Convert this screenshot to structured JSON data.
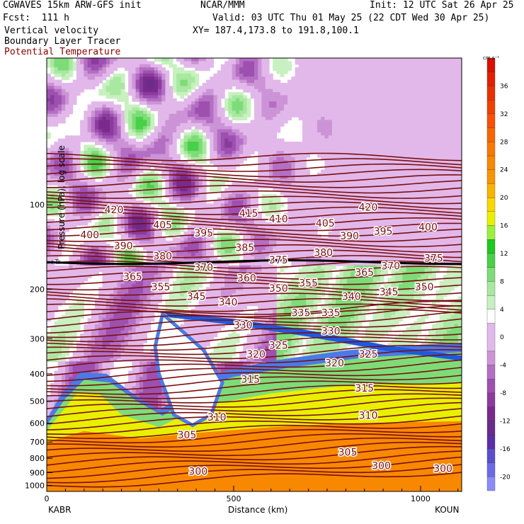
{
  "header": {
    "left_line1": "CGWAVES 15km ARW-GFS init",
    "left_line2": "Fcst:  111 h",
    "left_line3": "Vertical velocity",
    "left_line4": "Boundary Layer Tracer",
    "left_line5": "Potential Temperature",
    "center_line1": "NCAR/MMM",
    "center_line2": "Valid: 03 UTC Thu 01 May 25 (22 CDT Wed 30 Apr 25)",
    "center_line3": "XY= 187.4,173.8 to 191.8,100.1",
    "right_line1": "Init: 12 UTC Sat 26 Apr 25"
  },
  "colors": {
    "theta": "#7a0f0f",
    "trop": "#000000"
  },
  "chart_data": {
    "type": "heatmap",
    "xlabel": "Distance (km)",
    "ylabel": "Pressure (hPa), log scale",
    "xlim": [
      0,
      1110
    ],
    "ylim_hpa": [
      1050,
      30
    ],
    "x_ticks": [
      0,
      500,
      1000
    ],
    "x_tick_labels": [
      "0",
      "500",
      "1000"
    ],
    "y_ticks": [
      100,
      200,
      300,
      400,
      500,
      600,
      700,
      800,
      900,
      1000
    ],
    "y_tick_labels": [
      "100",
      "200",
      "300",
      "400",
      "500",
      "600",
      "700",
      "800",
      "900",
      "1000"
    ],
    "endpoint_left": "KABR",
    "endpoint_right": "KOUN",
    "tropopause_label": "+Tr",
    "colorbar": {
      "units": "cm s⁻¹",
      "labels": [
        36,
        32,
        28,
        24,
        20,
        16,
        12,
        8,
        4,
        0,
        -4,
        -8,
        -12,
        -16,
        -20
      ],
      "levels": [
        -22,
        -20,
        -18,
        -16,
        -14,
        -12,
        -10,
        -8,
        -6,
        -4,
        -2,
        2,
        4,
        6,
        8,
        10,
        12,
        14,
        16,
        18,
        20,
        22,
        24,
        26,
        28,
        30,
        32,
        34,
        36,
        38,
        40
      ],
      "colors": [
        "#8a8aff",
        "#6a6ae8",
        "#5a4ed0",
        "#5a2ea8",
        "#6a2c8c",
        "#7a2a8c",
        "#8a3c9c",
        "#9e50b0",
        "#b46ec4",
        "#cc94d6",
        "#e2b8ea",
        "#ffffff",
        "#c8f0c0",
        "#a8e8a0",
        "#7edc78",
        "#48d048",
        "#1ec81e",
        "#9cf03c",
        "#e8f000",
        "#f8d800",
        "#f8b400",
        "#f89400",
        "#f88800",
        "#f87800",
        "#f86400",
        "#f85000",
        "#f04000",
        "#e83000",
        "#e02000",
        "#d81000"
      ]
    },
    "theta_labels": [
      {
        "v": 420,
        "x": 180,
        "p": 104
      },
      {
        "v": 415,
        "x": 540,
        "p": 107
      },
      {
        "v": 410,
        "x": 620,
        "p": 112
      },
      {
        "v": 420,
        "x": 860,
        "p": 102
      },
      {
        "v": 400,
        "x": 115,
        "p": 128
      },
      {
        "v": 405,
        "x": 310,
        "p": 118
      },
      {
        "v": 405,
        "x": 745,
        "p": 116
      },
      {
        "v": 400,
        "x": 1020,
        "p": 120
      },
      {
        "v": 390,
        "x": 205,
        "p": 140
      },
      {
        "v": 395,
        "x": 420,
        "p": 126
      },
      {
        "v": 390,
        "x": 810,
        "p": 129
      },
      {
        "v": 395,
        "x": 900,
        "p": 124
      },
      {
        "v": 385,
        "x": 530,
        "p": 142
      },
      {
        "v": 380,
        "x": 310,
        "p": 152
      },
      {
        "v": 380,
        "x": 740,
        "p": 148
      },
      {
        "v": 375,
        "x": 620,
        "p": 157
      },
      {
        "v": 375,
        "x": 1035,
        "p": 155
      },
      {
        "v": 370,
        "x": 420,
        "p": 167
      },
      {
        "v": 370,
        "x": 920,
        "p": 165
      },
      {
        "v": 365,
        "x": 230,
        "p": 180
      },
      {
        "v": 365,
        "x": 850,
        "p": 174
      },
      {
        "v": 360,
        "x": 535,
        "p": 182
      },
      {
        "v": 355,
        "x": 305,
        "p": 196
      },
      {
        "v": 355,
        "x": 700,
        "p": 190
      },
      {
        "v": 350,
        "x": 620,
        "p": 198
      },
      {
        "v": 350,
        "x": 1010,
        "p": 196
      },
      {
        "v": 345,
        "x": 400,
        "p": 212
      },
      {
        "v": 345,
        "x": 915,
        "p": 204
      },
      {
        "v": 340,
        "x": 485,
        "p": 222
      },
      {
        "v": 340,
        "x": 815,
        "p": 212
      },
      {
        "v": 335,
        "x": 680,
        "p": 242
      },
      {
        "v": 335,
        "x": 760,
        "p": 242
      },
      {
        "v": 330,
        "x": 525,
        "p": 268
      },
      {
        "v": 330,
        "x": 760,
        "p": 282
      },
      {
        "v": 325,
        "x": 620,
        "p": 316
      },
      {
        "v": 325,
        "x": 860,
        "p": 340
      },
      {
        "v": 320,
        "x": 560,
        "p": 340
      },
      {
        "v": 320,
        "x": 770,
        "p": 366
      },
      {
        "v": 315,
        "x": 545,
        "p": 418
      },
      {
        "v": 315,
        "x": 850,
        "p": 450
      },
      {
        "v": 310,
        "x": 455,
        "p": 570
      },
      {
        "v": 310,
        "x": 860,
        "p": 562
      },
      {
        "v": 305,
        "x": 375,
        "p": 660
      },
      {
        "v": 305,
        "x": 805,
        "p": 760
      },
      {
        "v": 300,
        "x": 405,
        "p": 890
      },
      {
        "v": 300,
        "x": 895,
        "p": 850
      },
      {
        "v": 300,
        "x": 1060,
        "p": 870
      }
    ]
  }
}
